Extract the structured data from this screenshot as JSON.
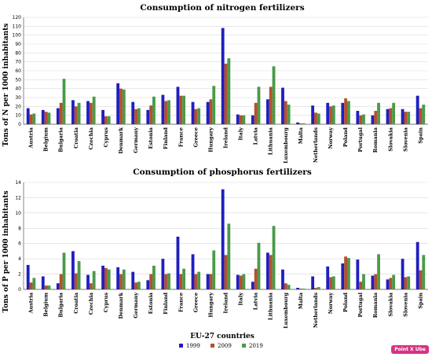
{
  "chart_data": [
    {
      "type": "bar",
      "title": "Consumption of nitrogen fertilizers",
      "xlabel": "",
      "ylabel": "Tons of N per 1000 inhabitants",
      "ylim": [
        0,
        120
      ],
      "yticks": [
        0,
        10,
        20,
        30,
        40,
        50,
        60,
        70,
        80,
        90,
        100,
        110,
        120
      ],
      "grid": true,
      "categories": [
        "Austria",
        "Belgium",
        "Bulgaria",
        "Croatia",
        "Czechia",
        "Cyprus",
        "Denmark",
        "Germany",
        "Estonia",
        "Finland",
        "France",
        "Greece",
        "Hungary",
        "Ireland",
        "Italy",
        "Latvia",
        "Lithuania",
        "Luxembourg",
        "Malta",
        "Netherlands",
        "Norway",
        "Poland",
        "Portugal",
        "Romania",
        "Slovakia",
        "Slovenia",
        "Spain"
      ],
      "series": [
        {
          "name": "1999",
          "values": [
            18,
            16,
            18,
            27,
            26,
            16,
            46,
            25,
            16,
            33,
            42,
            25,
            25,
            108,
            11,
            10,
            28,
            41,
            2,
            21,
            24,
            24,
            15,
            10,
            17,
            17,
            32
          ]
        },
        {
          "name": "2009",
          "values": [
            11,
            14,
            24,
            20,
            24,
            9,
            40,
            17,
            21,
            26,
            32,
            17,
            28,
            68,
            10,
            24,
            42,
            26,
            1,
            13,
            20,
            29,
            10,
            15,
            18,
            14,
            18
          ]
        },
        {
          "name": "2019",
          "values": [
            12,
            13,
            51,
            24,
            31,
            9,
            39,
            18,
            31,
            27,
            32,
            18,
            43,
            74,
            10,
            42,
            65,
            22,
            1,
            12,
            21,
            26,
            11,
            24,
            24,
            14,
            22
          ]
        }
      ]
    },
    {
      "type": "bar",
      "title": "Consumption of phosphorus fertilizers",
      "xlabel": "EU-27 countries",
      "ylabel": "Tons of P per 1000 inhabitants",
      "ylim": [
        0,
        14
      ],
      "yticks": [
        0,
        2,
        4,
        6,
        8,
        10,
        12,
        14
      ],
      "grid": true,
      "categories": [
        "Austria",
        "Belgium",
        "Bulgaria",
        "Croatia",
        "Czechia",
        "Cyprus",
        "Denmark",
        "Germany",
        "Estonia",
        "Finland",
        "France",
        "Greece",
        "Hungary",
        "Ireland",
        "Italy",
        "Latvia",
        "Lithuania",
        "Luxembourg",
        "Malta",
        "Netherlands",
        "Norway",
        "Poland",
        "Portugal",
        "Romania",
        "Slovakia",
        "Slovenia",
        "Spain"
      ],
      "series": [
        {
          "name": "1999",
          "values": [
            3.2,
            1.7,
            0.8,
            5.0,
            1.9,
            3.1,
            2.9,
            2.3,
            1.2,
            4.0,
            6.9,
            4.6,
            2.0,
            13.1,
            1.9,
            1.0,
            4.8,
            2.6,
            0.2,
            1.7,
            3.0,
            3.4,
            3.9,
            1.8,
            1.3,
            4.0,
            6.2
          ]
        },
        {
          "name": "2009",
          "values": [
            0.9,
            0.5,
            2.0,
            2.1,
            0.8,
            2.8,
            2.0,
            0.9,
            2.0,
            2.0,
            2.0,
            2.0,
            2.0,
            4.5,
            1.8,
            2.7,
            4.5,
            0.8,
            0.1,
            0.2,
            1.6,
            4.3,
            1.0,
            2.0,
            1.5,
            1.6,
            2.5
          ]
        },
        {
          "name": "2019",
          "values": [
            1.5,
            0.5,
            4.8,
            3.7,
            2.4,
            2.6,
            2.6,
            1.0,
            3.1,
            2.1,
            2.7,
            2.3,
            5.1,
            8.6,
            2.0,
            6.1,
            8.3,
            0.6,
            0.1,
            0.3,
            1.7,
            4.1,
            2.0,
            4.6,
            1.9,
            1.7,
            4.5
          ]
        }
      ]
    }
  ],
  "legend": {
    "placement": "bottom-center",
    "items": [
      {
        "label": "1999",
        "color": "#1f1fbf"
      },
      {
        "label": "2009",
        "color": "#b5502e"
      },
      {
        "label": "2019",
        "color": "#4a9a4a"
      }
    ]
  },
  "badge": "Point X Ube"
}
